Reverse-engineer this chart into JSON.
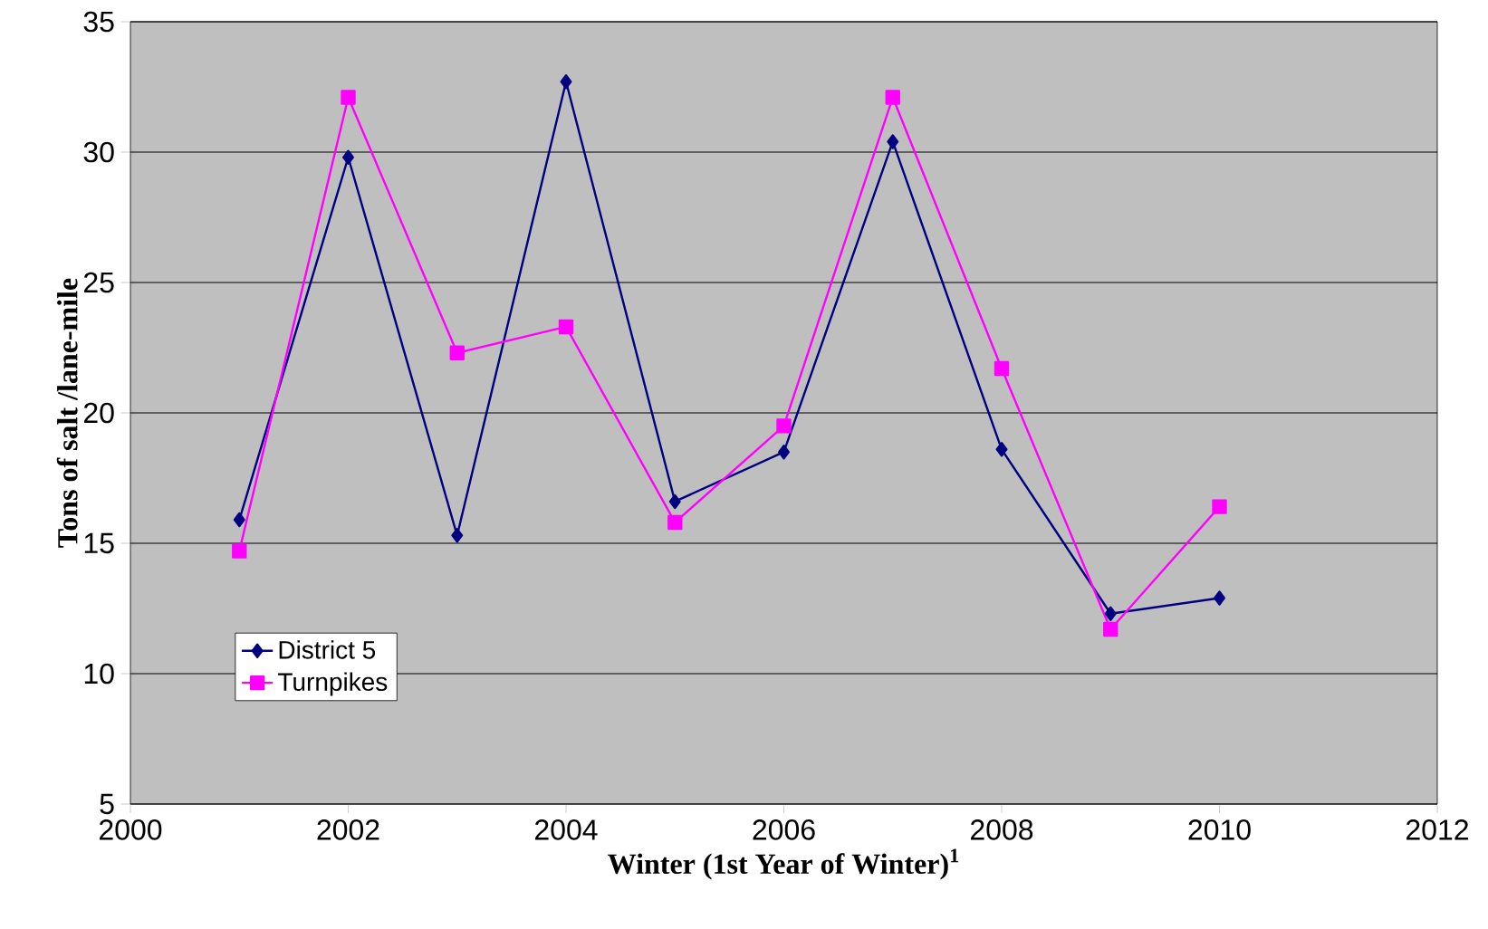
{
  "chart_data": {
    "type": "line",
    "xlabel": "Winter (1st Year of Winter)$^{1}$",
    "ylabel": "Tons of salt /lane-mile",
    "x": [
      2001,
      2002,
      2003,
      2004,
      2005,
      2006,
      2007,
      2008,
      2009,
      2010
    ],
    "series": [
      {
        "name": "District 5",
        "color": "#000080",
        "marker": "diamond",
        "values": [
          15.9,
          29.8,
          15.3,
          32.7,
          16.6,
          18.5,
          30.4,
          18.6,
          12.3,
          12.9
        ]
      },
      {
        "name": "Turnpikes",
        "color": "#ff00ff",
        "marker": "square",
        "values": [
          14.7,
          32.1,
          22.3,
          23.3,
          15.8,
          19.5,
          32.1,
          21.7,
          11.7,
          16.4
        ]
      }
    ],
    "xlim": [
      2000,
      2012
    ],
    "xticks": [
      2000,
      2002,
      2004,
      2006,
      2008,
      2010,
      2012
    ],
    "ylim": [
      5,
      35
    ],
    "yticks": [
      5,
      10,
      15,
      20,
      25,
      30,
      35
    ],
    "grid": "y",
    "legend": "bottom left",
    "line_style": "solid"
  }
}
